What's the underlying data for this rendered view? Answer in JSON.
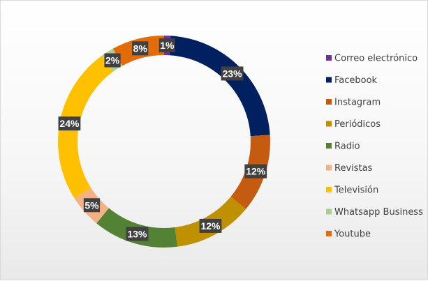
{
  "chart_data": {
    "type": "pie",
    "variant": "doughnut",
    "legend_position": "right",
    "data_label_format": "percent",
    "categories": [
      "Correo electrónico",
      "Facebook",
      "Instagram",
      "Periódicos",
      "Radio",
      "Revistas",
      "Televisión",
      "Whatsapp Business",
      "Youtube"
    ],
    "values": [
      1,
      23,
      12,
      12,
      13,
      5,
      24,
      2,
      8
    ],
    "labels": [
      "1%",
      "23%",
      "12%",
      "12%",
      "13%",
      "5%",
      "24%",
      "2%",
      "8%"
    ],
    "colors": [
      "#7030a0",
      "#002060",
      "#c55a11",
      "#bf9000",
      "#548235",
      "#f4b183",
      "#ffc000",
      "#a9d18e",
      "#e26b0a"
    ]
  }
}
